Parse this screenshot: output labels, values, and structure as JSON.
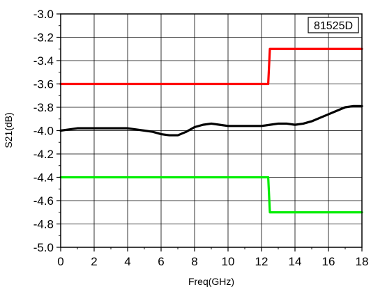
{
  "chart_data": {
    "type": "line",
    "title": "",
    "xlabel": "Freq(GHz)",
    "ylabel": "S21(dB)",
    "xlim": [
      0,
      18
    ],
    "ylim": [
      -5.0,
      -3.0
    ],
    "grid": true,
    "legend": {
      "text": "81525D",
      "placement": "top-right"
    },
    "x_ticks": [
      {
        "value": 0,
        "label": "0"
      },
      {
        "value": 2,
        "label": "2"
      },
      {
        "value": 4,
        "label": "4"
      },
      {
        "value": 6,
        "label": "6"
      },
      {
        "value": 8,
        "label": "8"
      },
      {
        "value": 10,
        "label": "10"
      },
      {
        "value": 12,
        "label": "12"
      },
      {
        "value": 14,
        "label": "14"
      },
      {
        "value": 16,
        "label": "16"
      },
      {
        "value": 18,
        "label": "18"
      }
    ],
    "y_ticks": [
      {
        "value": -3.0,
        "label": "-3.0"
      },
      {
        "value": -3.2,
        "label": "-3.2"
      },
      {
        "value": -3.4,
        "label": "-3.4"
      },
      {
        "value": -3.6,
        "label": "-3.6"
      },
      {
        "value": -3.8,
        "label": "-3.8"
      },
      {
        "value": -4.0,
        "label": "-4.0"
      },
      {
        "value": -4.2,
        "label": "-4.2"
      },
      {
        "value": -4.4,
        "label": "-4.4"
      },
      {
        "value": -4.6,
        "label": "-4.6"
      },
      {
        "value": -4.8,
        "label": "-4.8"
      },
      {
        "value": -5.0,
        "label": "-5.0"
      }
    ],
    "series": [
      {
        "color": "#ff0000",
        "x": [
          0,
          12.4,
          12.5,
          18
        ],
        "y": [
          -3.6,
          -3.6,
          -3.3,
          -3.3
        ]
      },
      {
        "color": "#00ee00",
        "x": [
          0,
          12.4,
          12.5,
          18
        ],
        "y": [
          -4.4,
          -4.4,
          -4.7,
          -4.7
        ]
      },
      {
        "color": "#000000",
        "x": [
          0,
          0.5,
          1,
          1.5,
          2,
          2.5,
          3,
          3.5,
          4,
          4.5,
          5,
          5.5,
          6,
          6.5,
          7,
          7.5,
          8,
          8.5,
          9,
          9.5,
          10,
          10.5,
          11,
          11.5,
          12,
          12.5,
          13,
          13.5,
          14,
          14.5,
          15,
          15.5,
          16,
          16.5,
          17,
          17.5,
          18
        ],
        "y": [
          -4.0,
          -3.99,
          -3.98,
          -3.98,
          -3.98,
          -3.98,
          -3.98,
          -3.98,
          -3.98,
          -3.99,
          -4.0,
          -4.01,
          -4.03,
          -4.04,
          -4.04,
          -4.01,
          -3.97,
          -3.95,
          -3.94,
          -3.95,
          -3.96,
          -3.96,
          -3.96,
          -3.96,
          -3.96,
          -3.95,
          -3.94,
          -3.94,
          -3.95,
          -3.94,
          -3.92,
          -3.89,
          -3.86,
          -3.83,
          -3.8,
          -3.79,
          -3.79
        ]
      }
    ]
  }
}
